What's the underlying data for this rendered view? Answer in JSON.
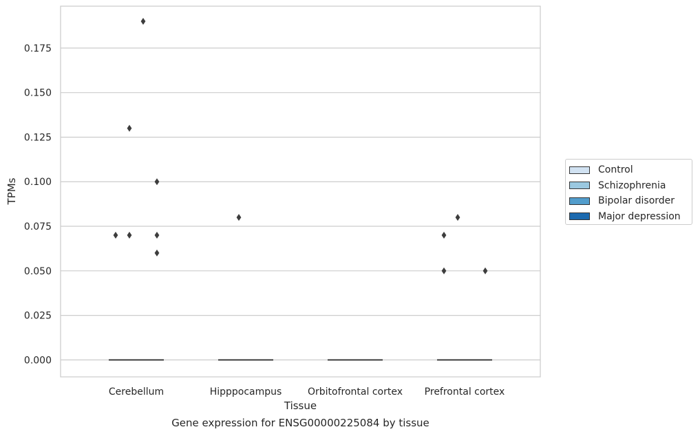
{
  "chart_data": {
    "type": "box",
    "title": "",
    "caption": "Gene expression for ENSG00000225084 by tissue",
    "xlabel": "Tissue",
    "ylabel": "TPMs",
    "ylim": [
      -0.0095,
      0.1985
    ],
    "yticks": [
      0.0,
      0.025,
      0.05,
      0.075,
      0.1,
      0.125,
      0.15,
      0.175
    ],
    "ytick_labels": [
      "0.000",
      "0.025",
      "0.050",
      "0.075",
      "0.100",
      "0.125",
      "0.150",
      "0.175"
    ],
    "categories": [
      "Cerebellum",
      "Hipppocampus",
      "Orbitofrontal cortex",
      "Prefrontal cortex"
    ],
    "grid": "horizontal",
    "legend_position": "right",
    "series": [
      {
        "name": "Control",
        "color": "#d1e2f2",
        "medians": [
          0,
          0,
          0,
          0
        ],
        "outliers": [
          [
            0.07
          ],
          [],
          [],
          [
            0.07,
            0.05
          ]
        ]
      },
      {
        "name": "Schizophrenia",
        "color": "#9ac8e0",
        "medians": [
          0,
          0,
          0,
          0
        ],
        "outliers": [
          [
            0.13,
            0.07
          ],
          [
            0.08
          ],
          [],
          [
            0.08
          ]
        ]
      },
      {
        "name": "Bipolar disorder",
        "color": "#529dcc",
        "medians": [
          0,
          0,
          0,
          0
        ],
        "outliers": [
          [
            0.19
          ],
          [],
          [],
          []
        ]
      },
      {
        "name": "Major depression",
        "color": "#1c6aaf",
        "medians": [
          0,
          0,
          0,
          0
        ],
        "outliers": [
          [
            0.1,
            0.07,
            0.06
          ],
          [],
          [],
          [
            0.05
          ]
        ]
      }
    ]
  }
}
